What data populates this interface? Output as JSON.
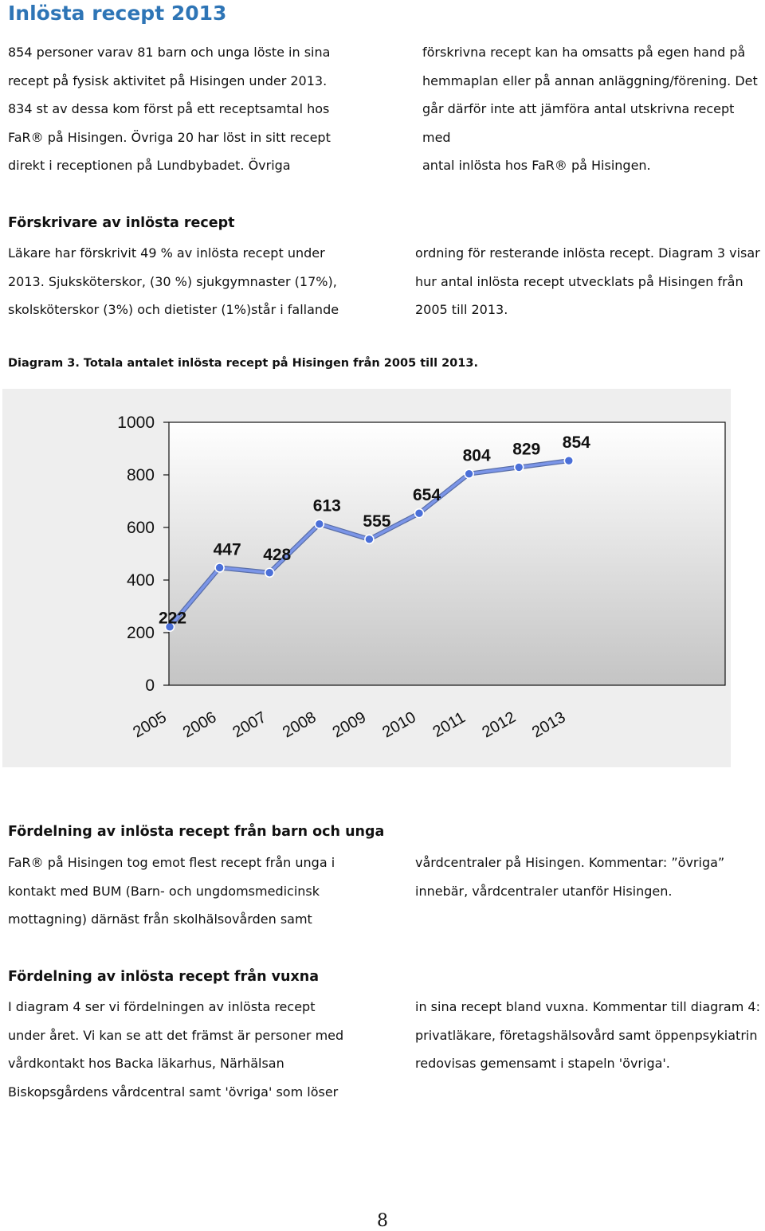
{
  "page_title": "Inlösta recept 2013",
  "intro": {
    "left": [
      "854 personer varav 81 barn och unga löste in sina",
      "recept på fysisk aktivitet på Hisingen under 2013.",
      "834 st av dessa kom först på ett receptsamtal hos",
      "FaR® på Hisingen. Övriga 20 har löst in sitt recept",
      "direkt i receptionen på Lundbybadet. Övriga"
    ],
    "right": [
      "förskrivna recept kan ha omsatts på egen hand på",
      "hemmaplan eller på annan anläggning/förening. Det",
      "går därför inte att jämföra antal utskrivna recept med",
      "antal inlösta hos FaR® på Hisingen."
    ]
  },
  "section_prescribers": {
    "heading": "Förskrivare av inlösta recept",
    "left": [
      "Läkare har förskrivit 49 % av inlösta recept under",
      "2013. Sjuksköterskor, (30 %) sjukgymnaster (17%),",
      "skolsköterskor (3%) och dietister (1%)står i fallande"
    ],
    "right": [
      "ordning för resterande inlösta recept. Diagram 3 visar",
      "hur antal inlösta recept utvecklats på Hisingen från",
      "2005 till 2013."
    ]
  },
  "diagram_caption": "Diagram 3. Totala antalet inlösta recept på Hisingen från 2005 till 2013.",
  "chart_data": {
    "type": "line",
    "title": "",
    "xlabel": "",
    "ylabel": "",
    "categories": [
      "2005",
      "2006",
      "2007",
      "2008",
      "2009",
      "2010",
      "2011",
      "2012",
      "2013"
    ],
    "series": [
      {
        "values": [
          222,
          447,
          428,
          613,
          555,
          654,
          804,
          829,
          854
        ]
      }
    ],
    "data_labels": [
      "222",
      "447",
      "428",
      "613",
      "555",
      "654",
      "804",
      "829",
      "854"
    ],
    "y_ticks": [
      "0",
      "200",
      "400",
      "600",
      "800",
      "1000"
    ],
    "ylim": [
      0,
      1000
    ],
    "grid": false,
    "legend": "none",
    "colors": {
      "line": "#7b95e8",
      "marker": "#4a6fd8",
      "plot_bg_top": "#ffffff",
      "plot_bg_bottom": "#c4c4c4",
      "frame_bg": "#eeeeee"
    }
  },
  "section_children": {
    "heading": "Fördelning av inlösta recept från barn och unga",
    "left": [
      "FaR® på Hisingen tog emot flest recept från unga i",
      "kontakt med BUM (Barn- och ungdomsmedicinsk",
      "mottagning) därnäst från skolhälsovården samt"
    ],
    "right": [
      "vårdcentraler på Hisingen. Kommentar: ”övriga”",
      "innebär, vårdcentraler utanför Hisingen."
    ]
  },
  "section_adults": {
    "heading": "Fördelning av inlösta recept från vuxna",
    "left": [
      "I diagram 4 ser vi fördelningen av inlösta recept",
      "under året. Vi kan se att det främst är personer med",
      "vårdkontakt hos Backa läkarhus, Närhälsan",
      "Biskopsgårdens vårdcentral samt 'övriga' som löser"
    ],
    "right": [
      "in sina recept bland vuxna. Kommentar till diagram 4:",
      "privatläkare, företagshälsovård samt öppenpsykiatrin",
      "redovisas gemensamt i stapeln 'övriga'."
    ]
  },
  "page_number": "8"
}
